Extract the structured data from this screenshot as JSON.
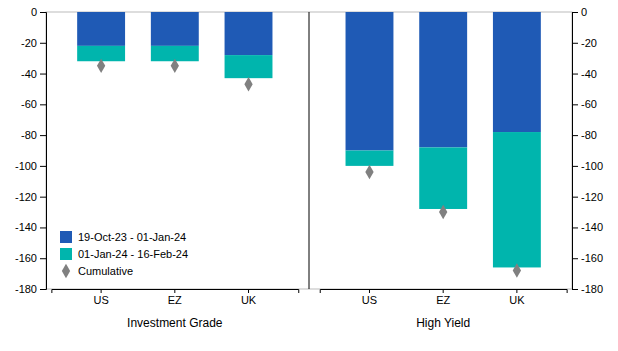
{
  "chart_data": {
    "type": "bar",
    "stacked": true,
    "categories": [
      "US",
      "EZ",
      "UK",
      "US",
      "EZ",
      "UK"
    ],
    "category_groups": [
      "Investment Grade",
      "Investment Grade",
      "Investment Grade",
      "High Yield",
      "High Yield",
      "High Yield"
    ],
    "series": [
      {
        "name": "19-Oct-23 - 01-Jan-24",
        "color": "#1f5ab5",
        "values": [
          -22,
          -22,
          -28,
          -90,
          -88,
          -78
        ]
      },
      {
        "name": "01-Jan-24 - 16-Feb-24",
        "color": "#00b5ad",
        "values": [
          -10,
          -10,
          -15,
          -10,
          -40,
          -88
        ]
      },
      {
        "name": "Cumulative",
        "type": "scatter",
        "marker": "diamond",
        "color": "#808080",
        "values": [
          -35,
          -35,
          -47,
          -104,
          -130,
          -168
        ]
      }
    ],
    "ylim": [
      -180,
      0
    ],
    "yticks": [
      0,
      -20,
      -40,
      -60,
      -80,
      -100,
      -120,
      -140,
      -160,
      -180
    ],
    "y2lim": [
      -180,
      0
    ],
    "y2ticks": [
      0,
      -20,
      -40,
      -60,
      -80,
      -100,
      -120,
      -140,
      -160,
      -180
    ],
    "grid": false,
    "legend": "lower left"
  }
}
